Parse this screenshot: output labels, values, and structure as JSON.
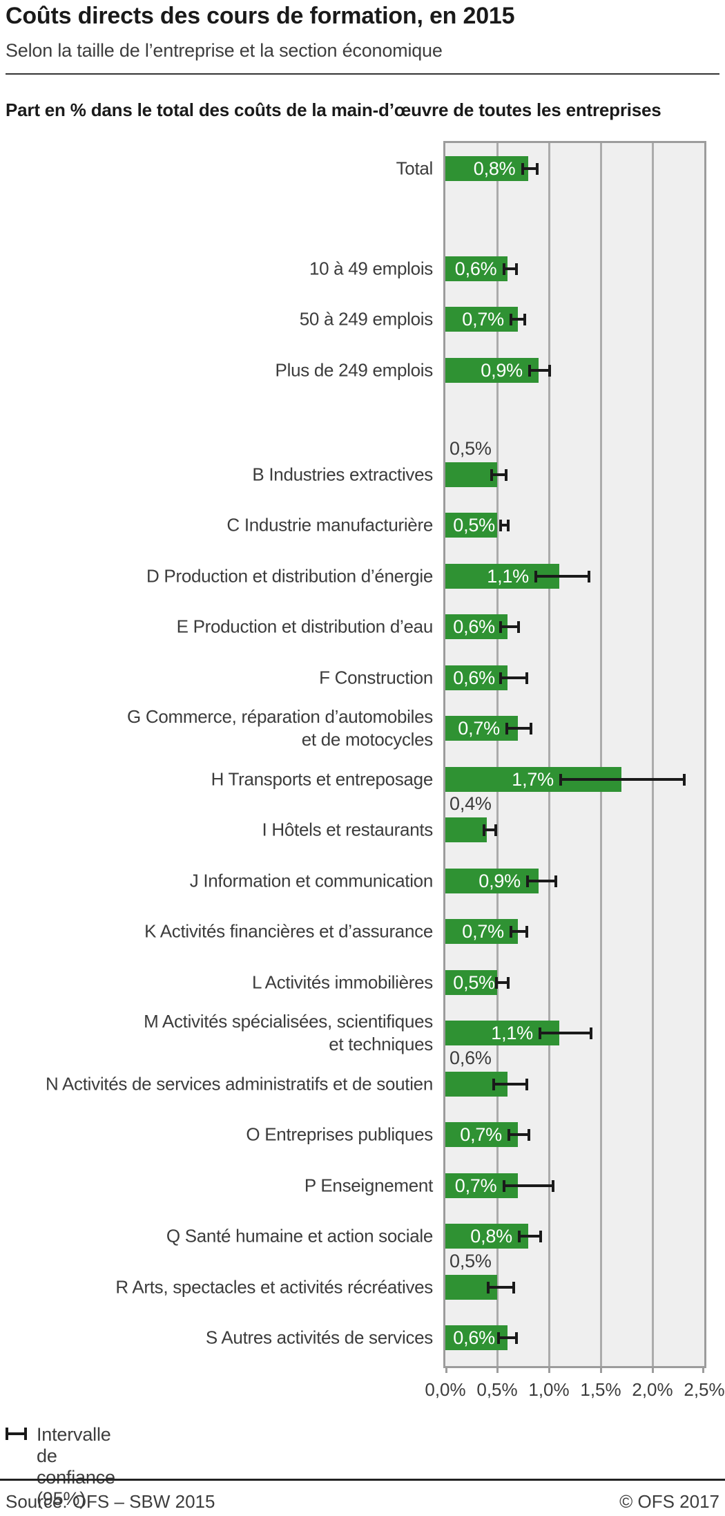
{
  "title": "Coûts directs des cours de formation, en 2015",
  "subtitle": "Selon la taille de l’entreprise et la section économique",
  "chart_header": "Part en % dans le total des coûts de la main-d’œuvre de toutes les entreprises",
  "legend": {
    "label": "Intervalle de confiance (95%)"
  },
  "footer": {
    "source": "Source: OFS – SBW 2015",
    "copyright": "© OFS 2017"
  },
  "colors": {
    "bar": "#2f9233",
    "plot_bg": "#efefef",
    "gridline": "#ababab",
    "plot_border": "#9c9c9c",
    "error_bar": "#1a1a1a"
  },
  "chart_data": {
    "type": "bar",
    "orientation": "horizontal",
    "unit": "%",
    "xlim": [
      0.0,
      2.5
    ],
    "x_ticks": [
      "0,0%",
      "0,5%",
      "1,0%",
      "1,5%",
      "2,0%",
      "2,5%"
    ],
    "grid": true,
    "error_bars": "Intervalle de confiance (95%)",
    "rows": [
      {
        "group": "total",
        "label": "Total",
        "value": 0.8,
        "value_label": "0,8%",
        "ci": [
          0.73,
          0.9
        ],
        "label_above": false
      },
      {
        "group": "size",
        "label": "10 à 49 emplois",
        "value": 0.6,
        "value_label": "0,6%",
        "ci": [
          0.55,
          0.7
        ],
        "label_above": false
      },
      {
        "group": "size",
        "label": "50 à 249 emplois",
        "value": 0.7,
        "value_label": "0,7%",
        "ci": [
          0.62,
          0.78
        ],
        "label_above": false
      },
      {
        "group": "size",
        "label": "Plus de 249 emplois",
        "value": 0.9,
        "value_label": "0,9%",
        "ci": [
          0.8,
          1.02
        ],
        "label_above": false
      },
      {
        "group": "section",
        "label": "B Industries extractives",
        "value": 0.5,
        "value_label": "0,5%",
        "ci": [
          0.43,
          0.6
        ],
        "label_above": true
      },
      {
        "group": "section",
        "label": "C Industrie manufacturière",
        "value": 0.5,
        "value_label": "0,5%",
        "ci": [
          0.52,
          0.62
        ],
        "label_above": false
      },
      {
        "group": "section",
        "label": "D Production et distribution d’énergie",
        "value": 1.1,
        "value_label": "1,1%",
        "ci": [
          0.86,
          1.4
        ],
        "label_above": false
      },
      {
        "group": "section",
        "label": "E Production et distribution d’eau",
        "value": 0.6,
        "value_label": "0,6%",
        "ci": [
          0.52,
          0.72
        ],
        "label_above": false
      },
      {
        "group": "section",
        "label": "F Construction",
        "value": 0.6,
        "value_label": "0,6%",
        "ci": [
          0.52,
          0.8
        ],
        "label_above": false
      },
      {
        "group": "section",
        "label": "G Commerce, réparation d’automobiles\net de motocycles",
        "value": 0.7,
        "value_label": "0,7%",
        "ci": [
          0.58,
          0.84
        ],
        "label_above": false
      },
      {
        "group": "section",
        "label": "H Transports et entreposage",
        "value": 1.7,
        "value_label": "1,7%",
        "ci": [
          1.1,
          2.32
        ],
        "label_above": false
      },
      {
        "group": "section",
        "label": "I Hôtels et restaurants",
        "value": 0.4,
        "value_label": "0,4%",
        "ci": [
          0.36,
          0.5
        ],
        "label_above": true
      },
      {
        "group": "section",
        "label": "J Information et communication",
        "value": 0.9,
        "value_label": "0,9%",
        "ci": [
          0.78,
          1.08
        ],
        "label_above": false
      },
      {
        "group": "section",
        "label": "K Activités financières et d’assurance",
        "value": 0.7,
        "value_label": "0,7%",
        "ci": [
          0.62,
          0.8
        ],
        "label_above": false
      },
      {
        "group": "section",
        "label": "L Activités immobilières",
        "value": 0.5,
        "value_label": "0,5%",
        "ci": [
          0.48,
          0.62
        ],
        "label_above": false
      },
      {
        "group": "section",
        "label": "M Activités spécialisées, scientifiques\net techniques",
        "value": 1.1,
        "value_label": "1,1%",
        "ci": [
          0.9,
          1.42
        ],
        "label_above": false
      },
      {
        "group": "section",
        "label": "N Activités de services administratifs et de soutien",
        "value": 0.6,
        "value_label": "0,6%",
        "ci": [
          0.45,
          0.8
        ],
        "label_above": true
      },
      {
        "group": "section",
        "label": "O Entreprises publiques",
        "value": 0.7,
        "value_label": "0,7%",
        "ci": [
          0.6,
          0.82
        ],
        "label_above": false
      },
      {
        "group": "section",
        "label": "P Enseignement",
        "value": 0.7,
        "value_label": "0,7%",
        "ci": [
          0.55,
          1.05
        ],
        "label_above": false
      },
      {
        "group": "section",
        "label": "Q Santé humaine et action sociale",
        "value": 0.8,
        "value_label": "0,8%",
        "ci": [
          0.7,
          0.93
        ],
        "label_above": false
      },
      {
        "group": "section",
        "label": "R Arts, spectacles et activités récréatives",
        "value": 0.5,
        "value_label": "0,5%",
        "ci": [
          0.4,
          0.67
        ],
        "label_above": true
      },
      {
        "group": "section",
        "label": "S Autres activités de services",
        "value": 0.6,
        "value_label": "0,6%",
        "ci": [
          0.5,
          0.7
        ],
        "label_above": false
      }
    ]
  }
}
